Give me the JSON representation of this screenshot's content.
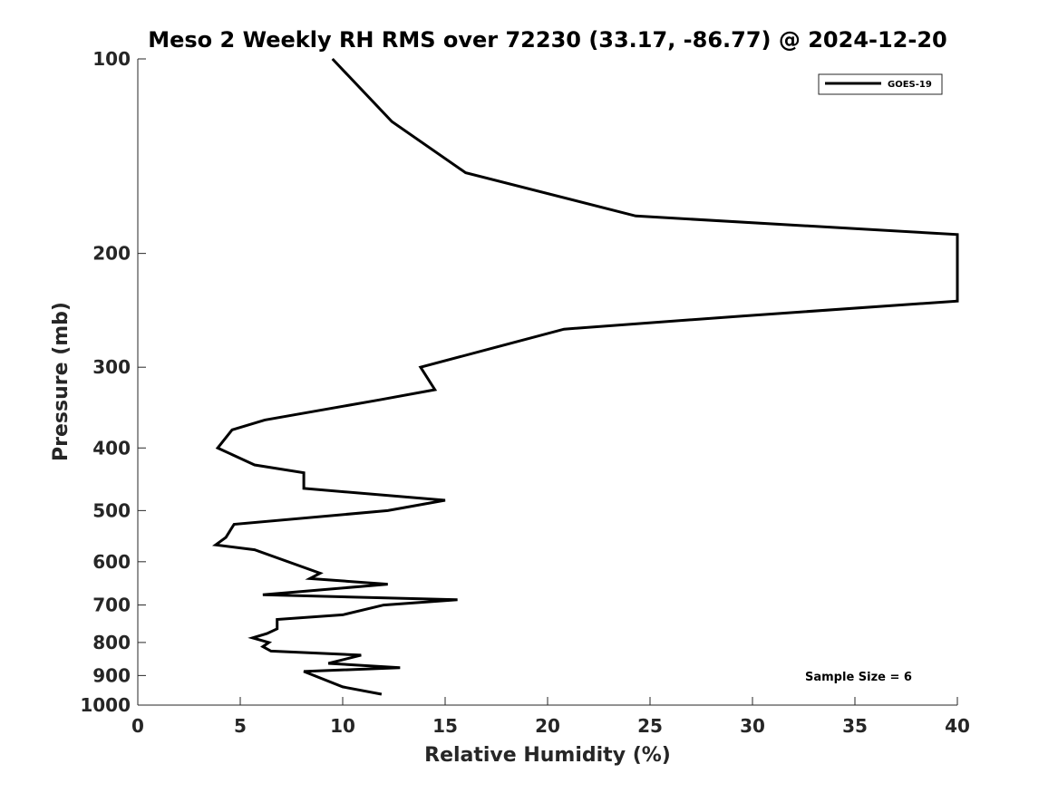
{
  "chart_data": {
    "type": "line",
    "title": "Meso 2 Weekly RH RMS over 72230 (33.17, -86.77) @ 2024-12-20",
    "xlabel": "Relative Humidity (%)",
    "ylabel": "Pressure (mb)",
    "xlim": [
      0,
      40
    ],
    "ylim": [
      1000,
      100
    ],
    "y_scale": "log",
    "x_ticks": [
      0,
      5,
      10,
      15,
      20,
      25,
      30,
      35,
      40
    ],
    "y_ticks": [
      100,
      200,
      300,
      400,
      500,
      600,
      700,
      800,
      900,
      1000
    ],
    "grid": false,
    "legend_position": "top-right",
    "series": [
      {
        "name": "GOES-19",
        "color": "#000000",
        "points": [
          [
            9.5,
            100
          ],
          [
            12.4,
            125
          ],
          [
            16.0,
            150
          ],
          [
            24.3,
            175
          ],
          [
            40.0,
            187
          ],
          [
            40.0,
            237
          ],
          [
            29.5,
            250
          ],
          [
            20.8,
            262
          ],
          [
            18.3,
            275
          ],
          [
            13.8,
            300
          ],
          [
            14.5,
            325
          ],
          [
            11.8,
            337
          ],
          [
            6.2,
            362
          ],
          [
            4.6,
            375
          ],
          [
            3.9,
            400
          ],
          [
            5.7,
            425
          ],
          [
            8.1,
            437
          ],
          [
            8.1,
            462
          ],
          [
            15.0,
            482
          ],
          [
            12.2,
            500
          ],
          [
            4.7,
            525
          ],
          [
            4.3,
            550
          ],
          [
            3.8,
            565
          ],
          [
            5.7,
            575
          ],
          [
            8.9,
            625
          ],
          [
            8.4,
            637
          ],
          [
            12.2,
            650
          ],
          [
            6.1,
            675
          ],
          [
            15.6,
            687
          ],
          [
            12.0,
            700
          ],
          [
            10.0,
            725
          ],
          [
            6.8,
            737
          ],
          [
            6.8,
            762
          ],
          [
            6.3,
            775
          ],
          [
            5.6,
            787
          ],
          [
            6.4,
            800
          ],
          [
            6.1,
            812
          ],
          [
            6.5,
            825
          ],
          [
            10.9,
            837
          ],
          [
            9.3,
            862
          ],
          [
            12.8,
            875
          ],
          [
            8.1,
            887
          ],
          [
            10.0,
            937
          ],
          [
            11.9,
            962
          ]
        ]
      }
    ],
    "annotation": "Sample Size = 6"
  }
}
